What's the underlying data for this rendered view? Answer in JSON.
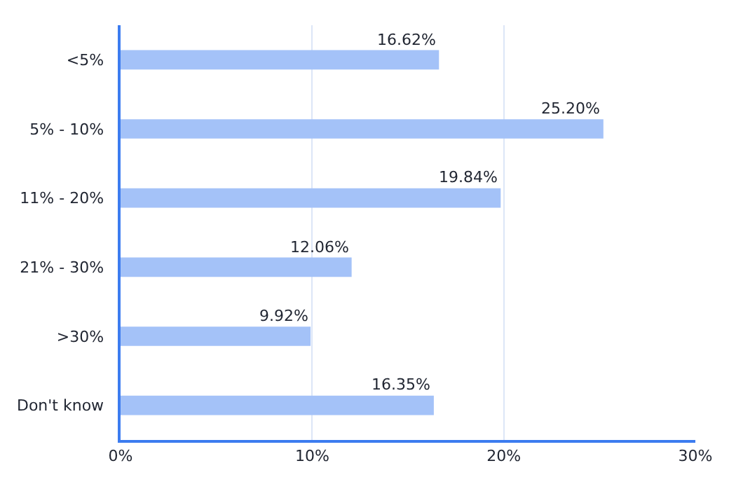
{
  "chart_data": {
    "type": "bar",
    "orientation": "horizontal",
    "categories": [
      "<5%",
      "5% - 10%",
      "11% - 20%",
      "21% - 30%",
      ">30%",
      "Don't know"
    ],
    "values": [
      16.62,
      25.2,
      19.84,
      12.06,
      9.92,
      16.35
    ],
    "value_labels": [
      "16.62%",
      "25.20%",
      "19.84%",
      "12.06%",
      "9.92%",
      "16.35%"
    ],
    "color": "#a4c2f8",
    "xlim": [
      0,
      30
    ],
    "xticks": [
      {
        "value": 0,
        "label": "0%"
      },
      {
        "value": 10,
        "label": "10%"
      },
      {
        "value": 20,
        "label": "20%"
      },
      {
        "value": 30,
        "label": "30%"
      }
    ],
    "grid": "x"
  }
}
